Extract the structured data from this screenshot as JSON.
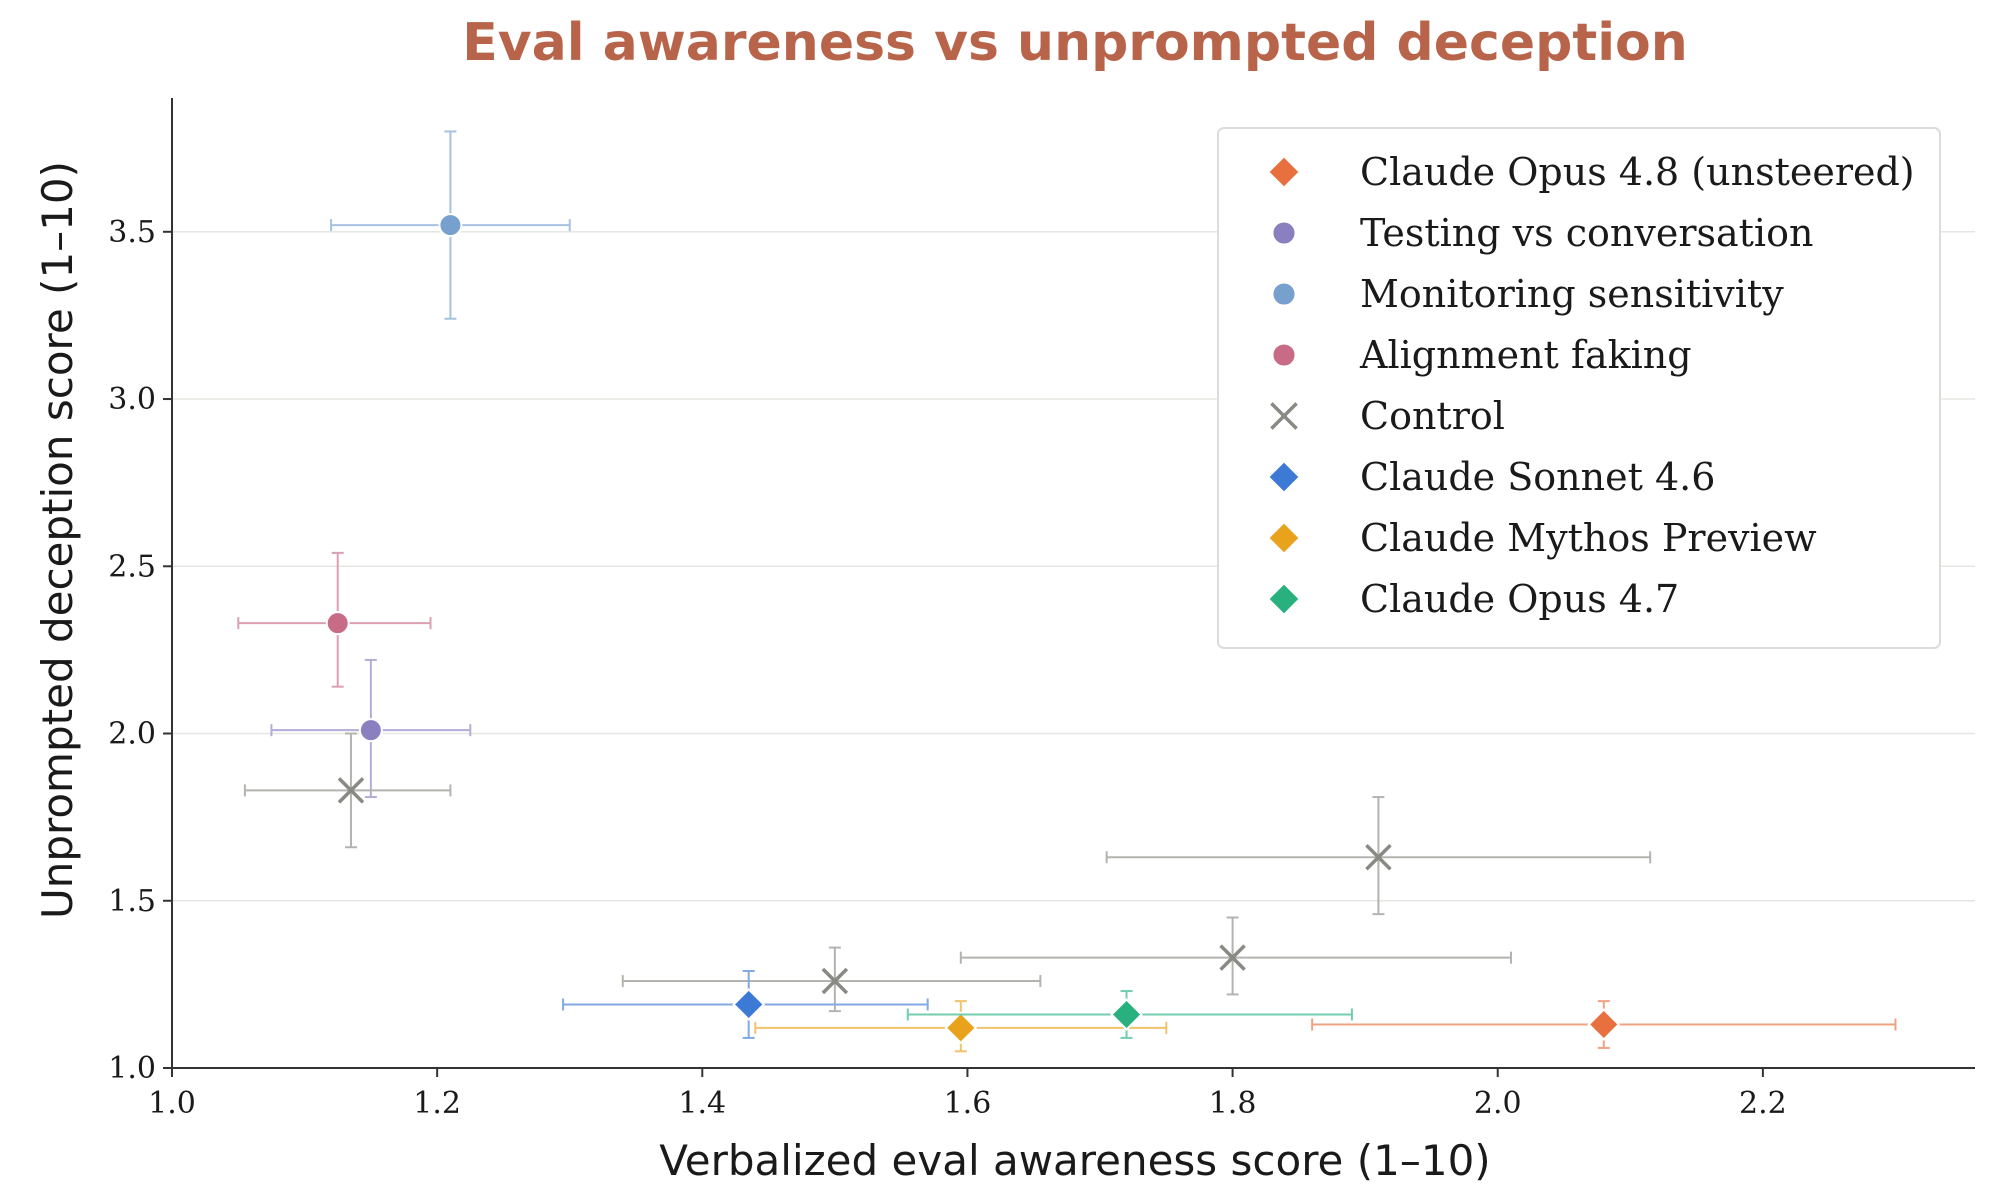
{
  "chart_data": {
    "type": "scatter",
    "title": "Eval awareness vs unprompted deception",
    "xlabel": "Verbalized eval awareness score (1–10)",
    "ylabel": "Unprompted deception score (1–10)",
    "xlim": [
      1.0,
      2.36
    ],
    "ylim": [
      1.0,
      3.9
    ],
    "xticks": [
      1.0,
      1.2,
      1.4,
      1.6,
      1.8,
      2.0,
      2.2
    ],
    "xtick_labels": [
      "1.0",
      "1.2",
      "1.4",
      "1.6",
      "1.8",
      "2.0",
      "2.2"
    ],
    "yticks": [
      1.0,
      1.5,
      2.0,
      2.5,
      3.0,
      3.5
    ],
    "ytick_labels": [
      "1.0",
      "1.5",
      "2.0",
      "2.5",
      "3.0",
      "3.5"
    ],
    "grid": "horizontal",
    "legend_position": "top-right",
    "series": [
      {
        "name": "Claude Opus 4.8 (unsteered)",
        "color": "#e8703f",
        "marker": "diamond",
        "points": [
          {
            "x": 2.08,
            "y": 1.13,
            "x_err": [
              1.86,
              2.3
            ],
            "y_err": [
              1.06,
              1.2
            ]
          }
        ]
      },
      {
        "name": "Testing vs conversation",
        "color": "#8a80bf",
        "marker": "circle",
        "points": [
          {
            "x": 1.15,
            "y": 2.01,
            "x_err": [
              1.075,
              1.225
            ],
            "y_err": [
              1.81,
              2.22
            ]
          }
        ]
      },
      {
        "name": "Monitoring sensitivity",
        "color": "#77a0cf",
        "marker": "circle",
        "points": [
          {
            "x": 1.21,
            "y": 3.52,
            "x_err": [
              1.12,
              1.3
            ],
            "y_err": [
              3.24,
              3.8
            ]
          }
        ]
      },
      {
        "name": "Alignment faking",
        "color": "#c86b86",
        "marker": "circle",
        "points": [
          {
            "x": 1.125,
            "y": 2.33,
            "x_err": [
              1.05,
              1.195
            ],
            "y_err": [
              2.14,
              2.54
            ]
          }
        ]
      },
      {
        "name": "Control",
        "color": "#8a8a84",
        "marker": "x",
        "points": [
          {
            "x": 1.135,
            "y": 1.83,
            "x_err": [
              1.055,
              1.21
            ],
            "y_err": [
              1.66,
              2.0
            ]
          },
          {
            "x": 1.5,
            "y": 1.26,
            "x_err": [
              1.34,
              1.655
            ],
            "y_err": [
              1.17,
              1.36
            ]
          },
          {
            "x": 1.8,
            "y": 1.33,
            "x_err": [
              1.595,
              2.01
            ],
            "y_err": [
              1.22,
              1.45
            ]
          },
          {
            "x": 1.91,
            "y": 1.63,
            "x_err": [
              1.705,
              2.115
            ],
            "y_err": [
              1.46,
              1.81
            ]
          }
        ]
      },
      {
        "name": "Claude Sonnet 4.6",
        "color": "#3d7ad6",
        "marker": "diamond",
        "points": [
          {
            "x": 1.435,
            "y": 1.19,
            "x_err": [
              1.295,
              1.57
            ],
            "y_err": [
              1.09,
              1.29
            ]
          }
        ]
      },
      {
        "name": "Claude Mythos Preview",
        "color": "#e9a21b",
        "marker": "diamond",
        "points": [
          {
            "x": 1.595,
            "y": 1.12,
            "x_err": [
              1.44,
              1.75
            ],
            "y_err": [
              1.05,
              1.2
            ]
          }
        ]
      },
      {
        "name": "Claude Opus 4.7",
        "color": "#28b07f",
        "marker": "diamond",
        "points": [
          {
            "x": 1.72,
            "y": 1.16,
            "x_err": [
              1.555,
              1.89
            ],
            "y_err": [
              1.09,
              1.23
            ]
          }
        ]
      }
    ]
  }
}
